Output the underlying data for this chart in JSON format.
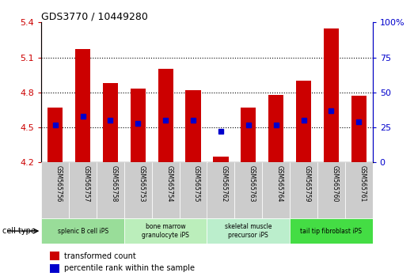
{
  "title": "GDS3770 / 10449280",
  "samples": [
    "GSM565756",
    "GSM565757",
    "GSM565758",
    "GSM565753",
    "GSM565754",
    "GSM565755",
    "GSM565762",
    "GSM565763",
    "GSM565764",
    "GSM565759",
    "GSM565760",
    "GSM565761"
  ],
  "transformed_count": [
    4.67,
    5.17,
    4.88,
    4.83,
    5.0,
    4.82,
    4.25,
    4.67,
    4.78,
    4.9,
    5.35,
    4.77
  ],
  "percentile_rank": [
    27,
    33,
    30,
    28,
    30,
    30,
    22,
    27,
    27,
    30,
    37,
    29
  ],
  "ylim_left": [
    4.2,
    5.4
  ],
  "ylim_right": [
    0,
    100
  ],
  "yticks_left": [
    4.2,
    4.5,
    4.8,
    5.1,
    5.4
  ],
  "yticks_right": [
    0,
    25,
    50,
    75,
    100
  ],
  "ytick_labels_left": [
    "4.2",
    "4.5",
    "4.8",
    "5.1",
    "5.4"
  ],
  "ytick_labels_right": [
    "0",
    "25",
    "50",
    "75",
    "100%"
  ],
  "bar_color": "#cc0000",
  "dot_color": "#0000cc",
  "bar_base": 4.2,
  "cell_groups": [
    {
      "label": "splenic B cell iPS",
      "start": 0,
      "end": 2,
      "color": "#99dd99"
    },
    {
      "label": "bone marrow\ngranulocyte iPS",
      "start": 3,
      "end": 5,
      "color": "#bbeebb"
    },
    {
      "label": "skeletal muscle\nprecursor iPS",
      "start": 6,
      "end": 8,
      "color": "#bbeecc"
    },
    {
      "label": "tail tip fibroblast iPS",
      "start": 9,
      "end": 11,
      "color": "#44dd44"
    }
  ],
  "cell_type_label": "cell type",
  "legend_bar_label": "transformed count",
  "legend_dot_label": "percentile rank within the sample",
  "grid_color": "#000000",
  "sample_box_color": "#cccccc",
  "background_color": "#ffffff",
  "tick_color_left": "#cc0000",
  "tick_color_right": "#0000cc"
}
